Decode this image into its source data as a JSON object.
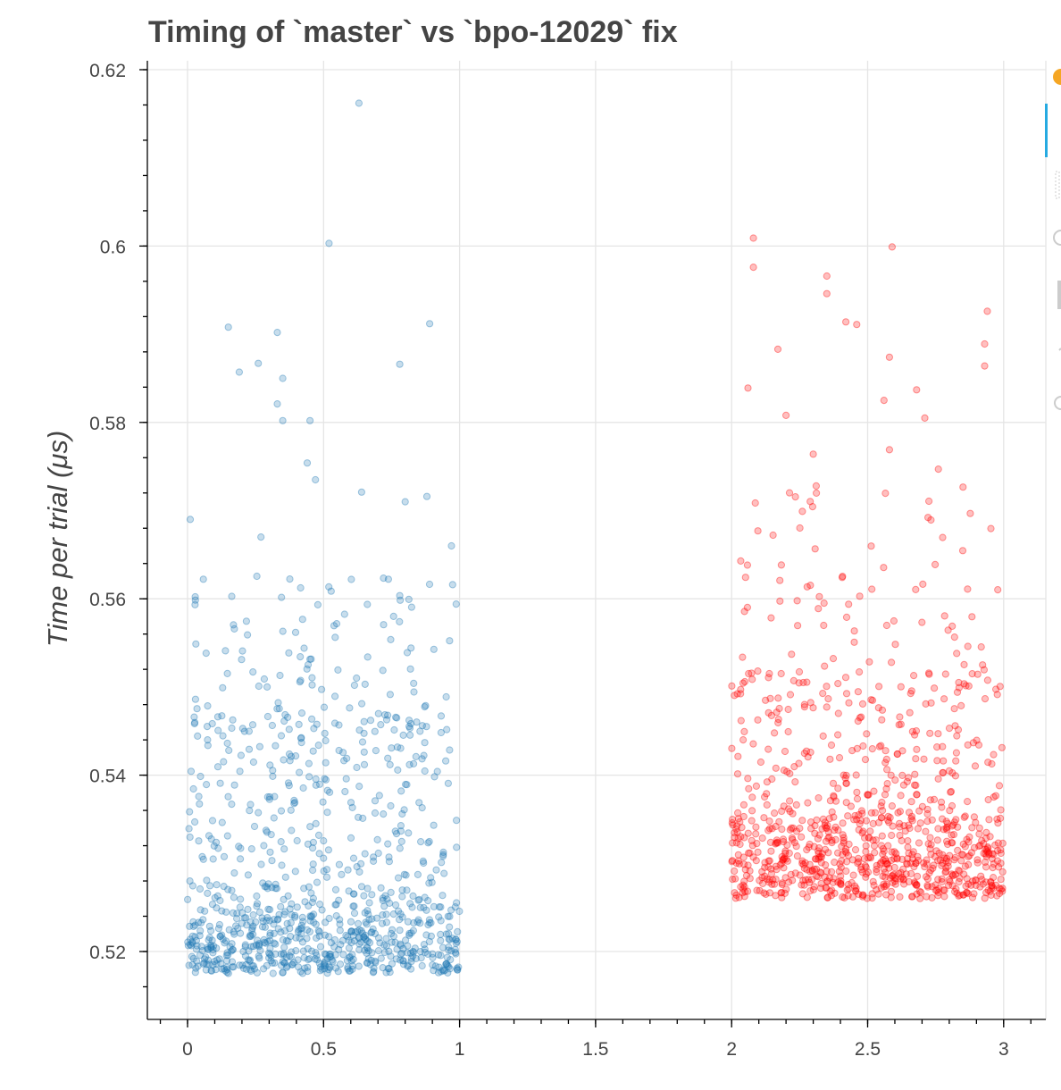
{
  "chart_data": {
    "type": "scatter",
    "title": "Timing of `master` vs `bpo-12029` fix",
    "xlabel": "",
    "ylabel": "Time per trial (μs)",
    "xlim": [
      -0.15,
      3.15
    ],
    "ylim": [
      0.512,
      0.6215
    ],
    "xticks": [
      "0",
      "0.5",
      "1",
      "1.5",
      "2",
      "2.5",
      "3"
    ],
    "xtick_values": [
      0,
      0.5,
      1,
      1.5,
      2,
      2.5,
      3
    ],
    "yticks": [
      "0.52",
      "0.54",
      "0.56",
      "0.58",
      "0.6",
      "0.62"
    ],
    "ytick_values": [
      0.52,
      0.54,
      0.56,
      0.58,
      0.6,
      0.62
    ],
    "grid": true,
    "series": [
      {
        "name": "",
        "color": "#1f77b4",
        "x_range": [
          0,
          1
        ],
        "outliers": [
          {
            "x": 0.63,
            "y": 0.6162
          },
          {
            "x": 0.52,
            "y": 0.6003
          },
          {
            "x": 0.15,
            "y": 0.5908
          },
          {
            "x": 0.33,
            "y": 0.5902
          },
          {
            "x": 0.89,
            "y": 0.5912
          },
          {
            "x": 0.26,
            "y": 0.5867
          },
          {
            "x": 0.78,
            "y": 0.5866
          },
          {
            "x": 0.19,
            "y": 0.5857
          },
          {
            "x": 0.35,
            "y": 0.585
          },
          {
            "x": 0.33,
            "y": 0.5821
          },
          {
            "x": 0.35,
            "y": 0.5802
          },
          {
            "x": 0.45,
            "y": 0.5802
          },
          {
            "x": 0.44,
            "y": 0.5754
          },
          {
            "x": 0.47,
            "y": 0.5735
          },
          {
            "x": 0.64,
            "y": 0.5721
          },
          {
            "x": 0.88,
            "y": 0.5716
          },
          {
            "x": 0.8,
            "y": 0.571
          },
          {
            "x": 0.01,
            "y": 0.569
          },
          {
            "x": 0.27,
            "y": 0.567
          },
          {
            "x": 0.97,
            "y": 0.566
          }
        ]
      },
      {
        "name": "",
        "color": "#ff0000",
        "x_range": [
          2,
          3
        ],
        "outliers": [
          {
            "x": 2.08,
            "y": 0.6009
          },
          {
            "x": 2.59,
            "y": 0.5999
          },
          {
            "x": 2.08,
            "y": 0.5976
          },
          {
            "x": 2.35,
            "y": 0.5966
          },
          {
            "x": 2.35,
            "y": 0.5946
          },
          {
            "x": 2.94,
            "y": 0.5926
          },
          {
            "x": 2.42,
            "y": 0.5914
          },
          {
            "x": 2.46,
            "y": 0.5911
          },
          {
            "x": 2.93,
            "y": 0.5889
          },
          {
            "x": 2.17,
            "y": 0.5883
          },
          {
            "x": 2.58,
            "y": 0.5874
          },
          {
            "x": 2.93,
            "y": 0.5864
          },
          {
            "x": 2.06,
            "y": 0.5839
          },
          {
            "x": 2.68,
            "y": 0.5837
          },
          {
            "x": 2.56,
            "y": 0.5825
          },
          {
            "x": 2.2,
            "y": 0.5808
          },
          {
            "x": 2.71,
            "y": 0.5805
          },
          {
            "x": 2.58,
            "y": 0.5769
          },
          {
            "x": 2.3,
            "y": 0.5764
          },
          {
            "x": 2.76,
            "y": 0.5747
          }
        ]
      }
    ]
  },
  "toolbar": {
    "accent_color": "#26aae1"
  }
}
